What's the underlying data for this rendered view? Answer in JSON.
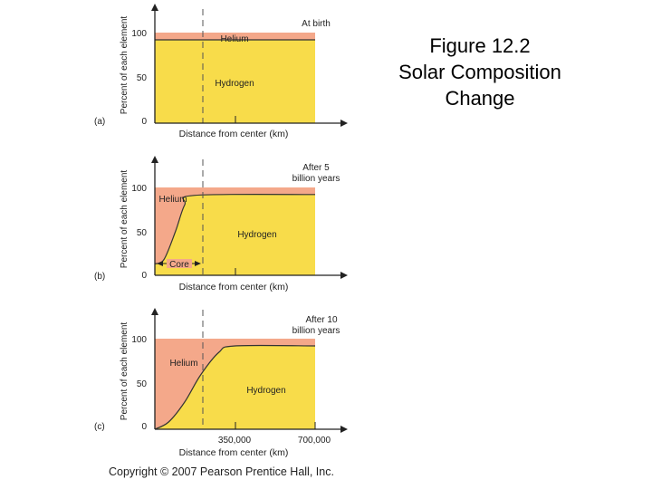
{
  "caption": {
    "line1": "Figure 12.2",
    "line2": "Solar Composition",
    "line3": "Change"
  },
  "copyright": "Copyright © 2007 Pearson Prentice Hall, Inc.",
  "colors": {
    "helium": "#f4a88a",
    "hydrogen": "#f8dc4a",
    "line": "#333333"
  },
  "chart_data": [
    {
      "type": "area",
      "panel": "(a)",
      "label": "At birth",
      "ylabel": "Percent of each element",
      "xlabel": "Distance from center (km)",
      "yticks": [
        "0",
        "50",
        "100"
      ],
      "ylim": [
        0,
        100
      ],
      "xlim": [
        0,
        700000
      ],
      "series_labels": {
        "helium": "Helium",
        "hydrogen": "Hydrogen"
      },
      "hydrogen_curve": {
        "x": [
          0,
          700000
        ],
        "y": [
          92,
          92
        ]
      }
    },
    {
      "type": "area",
      "panel": "(b)",
      "label_line1": "After 5",
      "label_line2": "billion years",
      "ylabel": "Percent of each element",
      "xlabel": "Distance from center (km)",
      "yticks": [
        "0",
        "50",
        "100"
      ],
      "ylim": [
        0,
        100
      ],
      "xlim": [
        0,
        700000
      ],
      "series_labels": {
        "helium": "Helium",
        "hydrogen": "Hydrogen"
      },
      "core_label": "Core",
      "hydrogen_curve": {
        "x": [
          0,
          40000,
          90000,
          130000,
          175000,
          700000
        ],
        "y": [
          13,
          18,
          50,
          80,
          91,
          92
        ]
      }
    },
    {
      "type": "area",
      "panel": "(c)",
      "label_line1": "After 10",
      "label_line2": "billion years",
      "ylabel": "Percent of each element",
      "xlabel": "Distance from center (km)",
      "yticks": [
        "0",
        "50",
        "100"
      ],
      "ylim": [
        0,
        100
      ],
      "xlim": [
        0,
        700000
      ],
      "xticks": [
        {
          "value": 350000,
          "label": "350,000"
        },
        {
          "value": 700000,
          "label": "700,000"
        }
      ],
      "series_labels": {
        "helium": "Helium",
        "hydrogen": "Hydrogen"
      },
      "hydrogen_curve": {
        "x": [
          0,
          60000,
          130000,
          200000,
          280000,
          350000,
          700000
        ],
        "y": [
          0,
          8,
          30,
          60,
          85,
          92,
          92
        ]
      }
    }
  ]
}
